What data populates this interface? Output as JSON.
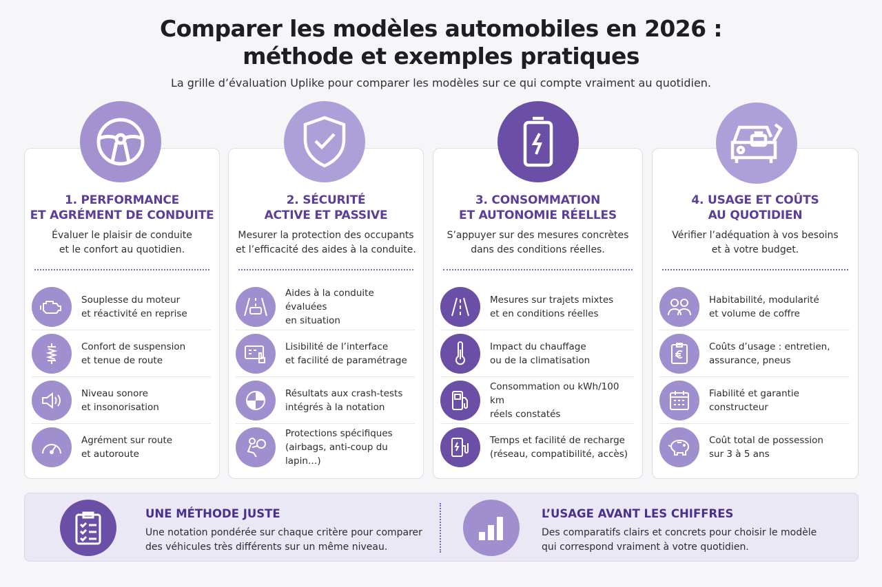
{
  "header": {
    "title_line1": "Comparer les modèles automobiles en 2026 :",
    "title_line2": "méthode et exemples pratiques",
    "subtitle": "La grille d’évaluation Uplike pour comparer les modèles sur ce qui compte vraiment au quotidien."
  },
  "cards": [
    {
      "icon": "steering-wheel-icon",
      "title1": "1. PERFORMANCE",
      "title2": "ET AGRÉMENT DE CONDUITE",
      "desc1": "Évaluer le plaisir de conduite",
      "desc2": "et le confort au quotidien.",
      "items": [
        {
          "icon": "engine-icon",
          "text": "Souplesse du moteur\net réactivité en reprise"
        },
        {
          "icon": "suspension-icon",
          "text": "Confort de suspension\net tenue de route"
        },
        {
          "icon": "speaker-icon",
          "text": "Niveau sonore\net insonorisation"
        },
        {
          "icon": "speedometer-icon",
          "text": "Agrément sur route\net autoroute"
        }
      ]
    },
    {
      "icon": "shield-check-icon",
      "title1": "2. SÉCURITÉ",
      "title2": "ACTIVE ET PASSIVE",
      "desc1": "Mesurer la protection des occupants",
      "desc2": "et l’efficacité des aides à la conduite.",
      "items": [
        {
          "icon": "car-lane-icon",
          "text": "Aides à la conduite évaluées\nen situation"
        },
        {
          "icon": "touchscreen-icon",
          "text": "Lisibilité de l’interface\net facilité de paramétrage"
        },
        {
          "icon": "crash-test-icon",
          "text": "Résultats aux crash-tests\nintégrés à la notation"
        },
        {
          "icon": "airbag-icon",
          "text": "Protections spécifiques\n(airbags, anti-coup du lapin…)"
        }
      ]
    },
    {
      "icon": "battery-icon",
      "title1": "3. CONSOMMATION",
      "title2": "ET AUTONOMIE RÉELLES",
      "desc1": "S’appuyer sur des mesures concrètes",
      "desc2": "dans des conditions réelles.",
      "items": [
        {
          "icon": "road-icon",
          "text": "Mesures sur trajets mixtes\net en conditions réelles"
        },
        {
          "icon": "thermometer-icon",
          "text": "Impact du chauffage\nou de la climatisation"
        },
        {
          "icon": "fuel-pump-icon",
          "text": "Consommation ou kWh/100 km\nréels constatés"
        },
        {
          "icon": "charging-station-icon",
          "text": "Temps et facilité de recharge\n(réseau, compatibilité, accès)"
        }
      ]
    },
    {
      "icon": "car-luggage-icon",
      "title1": "4. USAGE ET COÛTS",
      "title2": "AU QUOTIDIEN",
      "desc1": "Vérifier l’adéquation à vos besoins",
      "desc2": "et à votre budget.",
      "items": [
        {
          "icon": "people-icon",
          "text": "Habitabilité, modularité\net volume de coffre"
        },
        {
          "icon": "euro-document-icon",
          "text": "Coûts d’usage : entretien,\nassurance, pneus"
        },
        {
          "icon": "calendar-check-icon",
          "text": "Fiabilité et garantie\nconstructeur"
        },
        {
          "icon": "piggy-bank-icon",
          "text": "Coût total de possession\nsur 3 à 5 ans"
        }
      ]
    }
  ],
  "footer": {
    "left_title": "UNE MÉTHODE JUSTE",
    "left_text": "Une notation pondérée sur chaque critère pour comparer\ndes véhicules très différents sur un même niveau.",
    "left_icon": "checklist-icon",
    "right_title": "L’USAGE AVANT LES CHIFFRES",
    "right_text": "Des comparatifs clairs et concrets pour choisir le modèle\nqui correspond vraiment à votre quotidien.",
    "right_icon": "bar-chart-icon"
  }
}
